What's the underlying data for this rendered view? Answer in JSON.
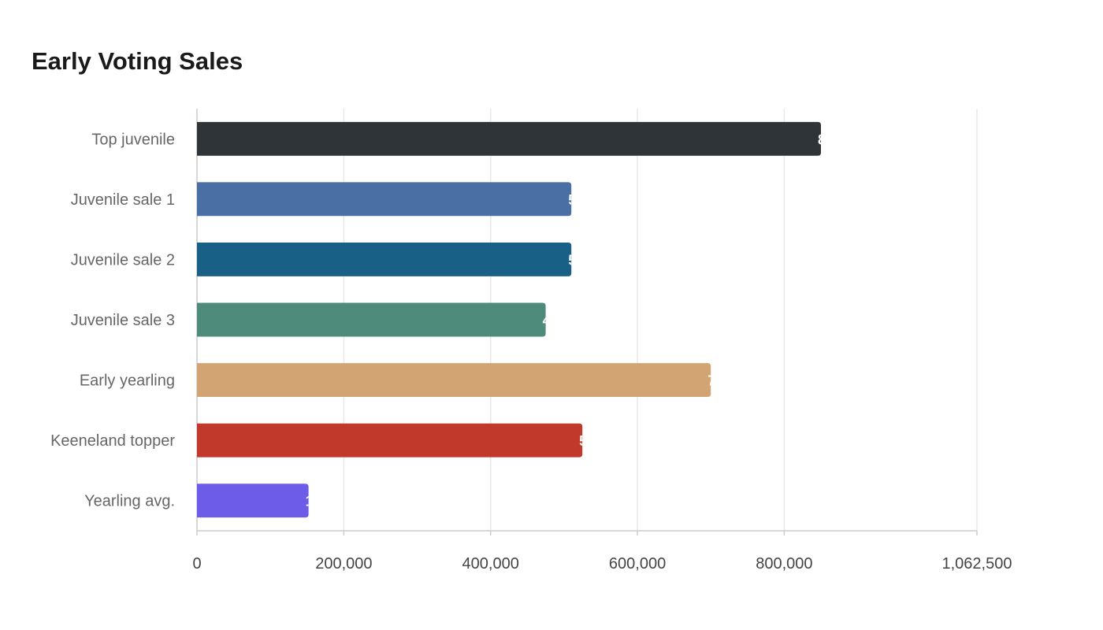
{
  "chart_data": {
    "type": "bar",
    "orientation": "horizontal",
    "title": "Early Voting Sales",
    "categories": [
      "Top juvenile",
      "Juvenile sale 1",
      "Juvenile sale 2",
      "Juvenile sale 3",
      "Early yearling",
      "Keeneland topper",
      "Yearling avg."
    ],
    "values": [
      850000,
      510000,
      510000,
      475000,
      700000,
      525000,
      152000
    ],
    "colors": [
      "#2e3438",
      "#4a6fa5",
      "#186086",
      "#4f8b7a",
      "#d2a473",
      "#c0392b",
      "#6c5ce7"
    ],
    "xlim": [
      0,
      1062500
    ],
    "xticks": [
      0,
      200000,
      400000,
      600000,
      800000,
      1062500
    ],
    "xtick_labels": [
      "0",
      "200,000",
      "400,000",
      "600,000",
      "800,000",
      "1,062,500"
    ],
    "data_labels": "inside-end, white, mostly clipped",
    "grid": "vertical",
    "xlabel": "",
    "ylabel": ""
  }
}
